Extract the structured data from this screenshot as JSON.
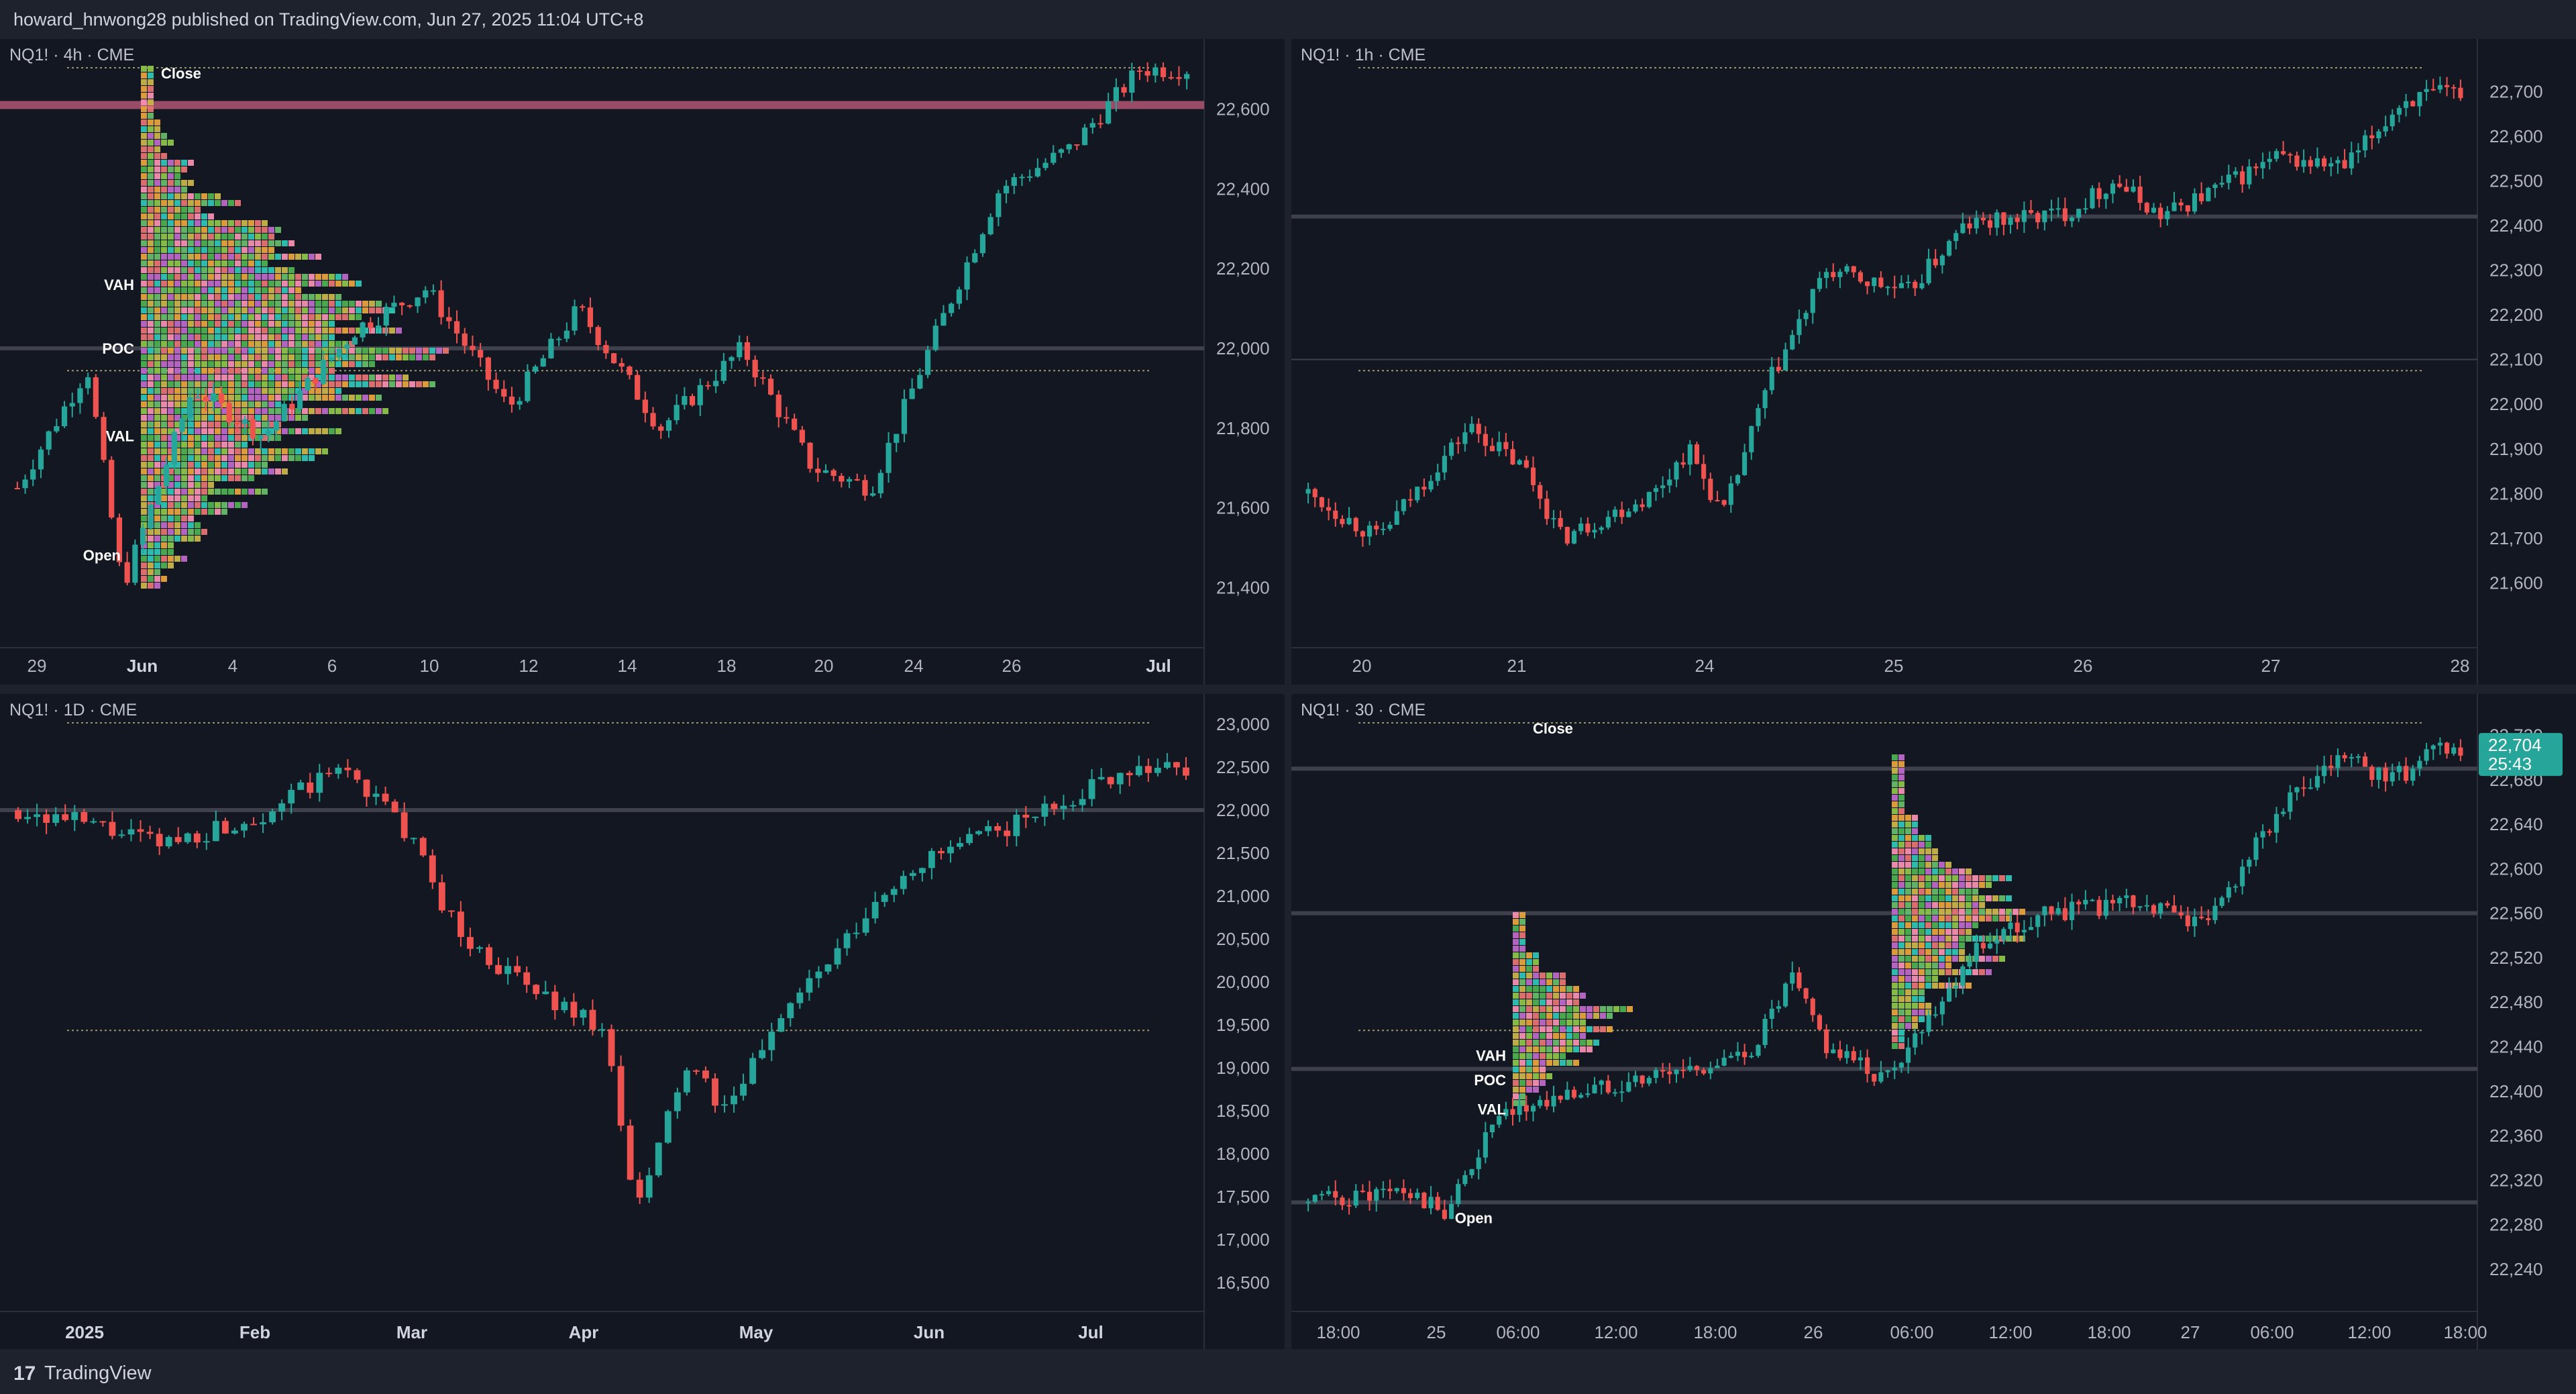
{
  "header": {
    "published": "howard_hnwong28 published on TradingView.com, Jun 27, 2025 11:04 UTC+8"
  },
  "footer": {
    "logo": "17",
    "brand": "TradingView"
  },
  "colors": {
    "up": "#26a69a",
    "down": "#ef5350",
    "background": "#131722",
    "grid": "#2a2e39",
    "text": "#b2b5be",
    "poc_line": "#434651",
    "resistance": "#b25572",
    "close_line": "#d4d08a"
  },
  "chart_data": [
    {
      "type": "candlestick",
      "title": "NQ1! · 4h · CME",
      "x_ticks": [
        "29",
        "Jun",
        "4",
        "6",
        "10",
        "12",
        "14",
        "18",
        "20",
        "24",
        "26",
        "Jul"
      ],
      "y_ticks": [
        "22,600",
        "22,400",
        "22,200",
        "22,000",
        "21,800",
        "21,600",
        "21,400"
      ],
      "ylim": [
        21300,
        22700
      ],
      "price_levels": [
        22610,
        22000
      ],
      "profile_labels": {
        "close": "Close",
        "vah": "VAH",
        "poc": "POC",
        "val": "VAL",
        "open": "Open"
      },
      "profile": {
        "vah": 22160,
        "poc": 22000,
        "val": 21780
      },
      "series": [
        {
          "anchors": [
            [
              0,
              21650
            ],
            [
              0.06,
              21950
            ],
            [
              0.09,
              21400
            ],
            [
              0.15,
              21900
            ],
            [
              0.21,
              21780
            ],
            [
              0.29,
              22050
            ],
            [
              0.35,
              22150
            ],
            [
              0.42,
              21850
            ],
            [
              0.48,
              22100
            ],
            [
              0.55,
              21800
            ],
            [
              0.62,
              22000
            ],
            [
              0.68,
              21700
            ],
            [
              0.73,
              21650
            ],
            [
              0.78,
              22000
            ],
            [
              0.84,
              22400
            ],
            [
              0.9,
              22500
            ],
            [
              0.96,
              22700
            ]
          ]
        }
      ]
    },
    {
      "type": "candlestick",
      "title": "NQ1! · 1h · CME",
      "x_ticks": [
        "20",
        "21",
        "24",
        "25",
        "26",
        "27",
        "28"
      ],
      "y_ticks": [
        "22,700",
        "22,600",
        "22,500",
        "22,400",
        "22,300",
        "22,200",
        "22,100",
        "22,000",
        "21,900",
        "21,800",
        "21,700",
        "21,600"
      ],
      "ylim": [
        21500,
        22750
      ],
      "price_levels": [
        22420,
        22100
      ],
      "series": [
        {
          "anchors": [
            [
              0,
              21800
            ],
            [
              0.06,
              21700
            ],
            [
              0.14,
              21950
            ],
            [
              0.19,
              21850
            ],
            [
              0.22,
              21700
            ],
            [
              0.3,
              21800
            ],
            [
              0.33,
              21900
            ],
            [
              0.36,
              21750
            ],
            [
              0.4,
              22050
            ],
            [
              0.45,
              22300
            ],
            [
              0.52,
              22250
            ],
            [
              0.57,
              22400
            ],
            [
              0.66,
              22430
            ],
            [
              0.7,
              22500
            ],
            [
              0.74,
              22420
            ],
            [
              0.84,
              22550
            ],
            [
              0.9,
              22530
            ],
            [
              0.95,
              22680
            ],
            [
              1.0,
              22700
            ]
          ]
        }
      ]
    },
    {
      "type": "candlestick",
      "title": "NQ1! · 1D · CME",
      "x_ticks": [
        "2025",
        "Feb",
        "Mar",
        "Apr",
        "May",
        "Jun",
        "Jul"
      ],
      "y_ticks": [
        "23,000",
        "22,500",
        "22,000",
        "21,500",
        "21,000",
        "20,500",
        "20,000",
        "19,500",
        "19,000",
        "18,500",
        "18,000",
        "17,500",
        "17,000",
        "16,500"
      ],
      "ylim": [
        16400,
        23000
      ],
      "price_levels": [
        22000
      ],
      "series": [
        {
          "anchors": [
            [
              0,
              22000
            ],
            [
              0.07,
              21800
            ],
            [
              0.12,
              21600
            ],
            [
              0.2,
              21900
            ],
            [
              0.28,
              22500
            ],
            [
              0.33,
              21800
            ],
            [
              0.38,
              20500
            ],
            [
              0.44,
              19900
            ],
            [
              0.5,
              19500
            ],
            [
              0.53,
              17300
            ],
            [
              0.57,
              19000
            ],
            [
              0.61,
              18500
            ],
            [
              0.65,
              19600
            ],
            [
              0.7,
              20300
            ],
            [
              0.76,
              21300
            ],
            [
              0.81,
              21600
            ],
            [
              0.88,
              22000
            ],
            [
              0.95,
              22500
            ]
          ]
        }
      ]
    },
    {
      "type": "candlestick",
      "title": "NQ1! · 30 · CME",
      "x_ticks": [
        "18:00",
        "25",
        "06:00",
        "12:00",
        "18:00",
        "26",
        "06:00",
        "12:00",
        "18:00",
        "27",
        "06:00",
        "12:00",
        "18:00"
      ],
      "y_ticks": [
        "22,720",
        "22,680",
        "22,640",
        "22,600",
        "22,560",
        "22,520",
        "22,480",
        "22,440",
        "22,400",
        "22,360",
        "22,320",
        "22,280",
        "22,240"
      ],
      "ylim": [
        22220,
        22730
      ],
      "price_levels": [
        22690,
        22560,
        22420,
        22300
      ],
      "profile_labels": {
        "close": "Close",
        "vah": "VAH",
        "poc": "POC",
        "val": "VAL",
        "open": "Open"
      },
      "last_price": "22,704",
      "countdown": "25:43",
      "series": [
        {
          "anchors": [
            [
              0,
              22300
            ],
            [
              0.08,
              22310
            ],
            [
              0.12,
              22290
            ],
            [
              0.16,
              22370
            ],
            [
              0.2,
              22390
            ],
            [
              0.28,
              22410
            ],
            [
              0.38,
              22430
            ],
            [
              0.42,
              22500
            ],
            [
              0.45,
              22440
            ],
            [
              0.5,
              22410
            ],
            [
              0.54,
              22470
            ],
            [
              0.58,
              22530
            ],
            [
              0.64,
              22560
            ],
            [
              0.72,
              22570
            ],
            [
              0.78,
              22550
            ],
            [
              0.84,
              22650
            ],
            [
              0.9,
              22700
            ],
            [
              0.94,
              22680
            ],
            [
              0.98,
              22705
            ]
          ]
        }
      ]
    }
  ]
}
